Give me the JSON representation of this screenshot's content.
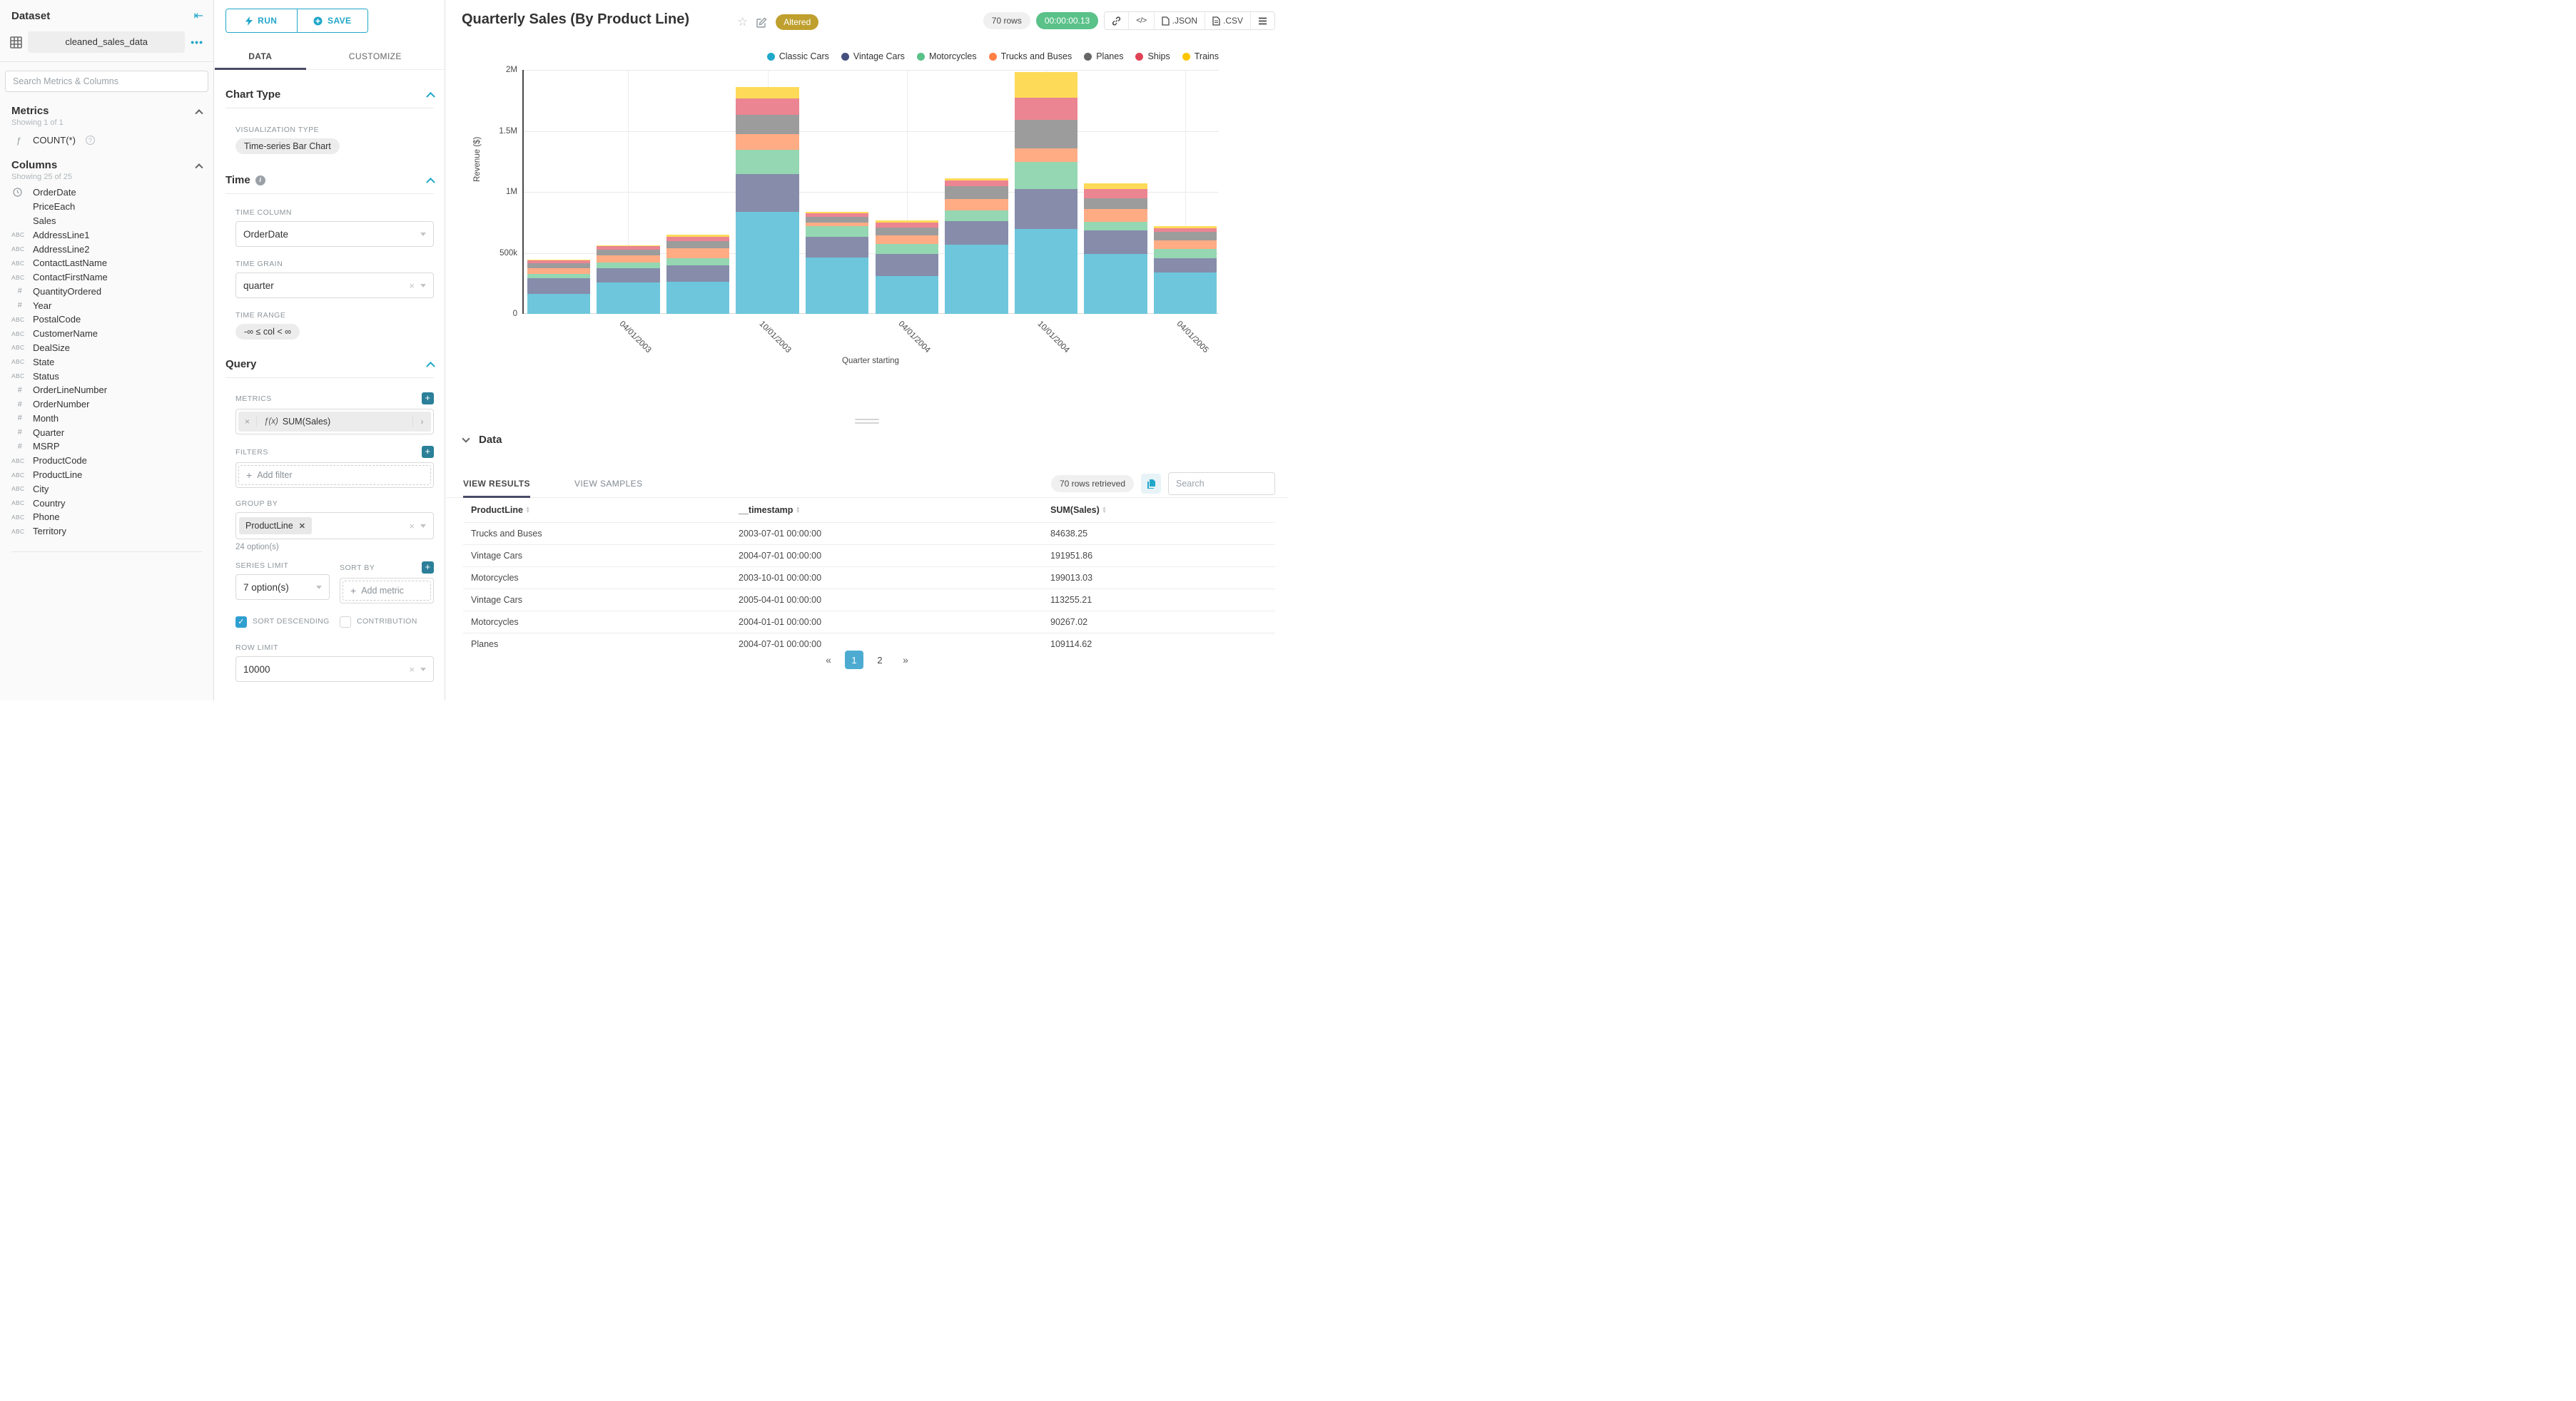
{
  "colors": {
    "accent": "#20a7c9",
    "tab_underline": "#484b66",
    "timer_green": "#5ac189",
    "badge_gold": "#bfa02f",
    "active_page_blue": "#4dabd1",
    "checkbox_blue": "#2f9fd0"
  },
  "sidebar": {
    "title": "Dataset",
    "dataset_name": "cleaned_sales_data",
    "search_placeholder": "Search Metrics & Columns",
    "metrics": {
      "title": "Metrics",
      "count_text": "Showing 1 of 1",
      "items": [
        {
          "type": "function",
          "label": "COUNT(*)"
        }
      ]
    },
    "columns": {
      "title": "Columns",
      "count_text": "Showing 25 of 25",
      "items": [
        {
          "type": "time",
          "label": "OrderDate"
        },
        {
          "type": "none",
          "label": "PriceEach"
        },
        {
          "type": "none",
          "label": "Sales"
        },
        {
          "type": "text",
          "label": "AddressLine1"
        },
        {
          "type": "text",
          "label": "AddressLine2"
        },
        {
          "type": "text",
          "label": "ContactLastName"
        },
        {
          "type": "text",
          "label": "ContactFirstName"
        },
        {
          "type": "num",
          "label": "QuantityOrdered"
        },
        {
          "type": "num",
          "label": "Year"
        },
        {
          "type": "text",
          "label": "PostalCode"
        },
        {
          "type": "text",
          "label": "CustomerName"
        },
        {
          "type": "text",
          "label": "DealSize"
        },
        {
          "type": "text",
          "label": "State"
        },
        {
          "type": "text",
          "label": "Status"
        },
        {
          "type": "num",
          "label": "OrderLineNumber"
        },
        {
          "type": "num",
          "label": "OrderNumber"
        },
        {
          "type": "num",
          "label": "Month"
        },
        {
          "type": "num",
          "label": "Quarter"
        },
        {
          "type": "num",
          "label": "MSRP"
        },
        {
          "type": "text",
          "label": "ProductCode"
        },
        {
          "type": "text",
          "label": "ProductLine"
        },
        {
          "type": "text",
          "label": "City"
        },
        {
          "type": "text",
          "label": "Country"
        },
        {
          "type": "text",
          "label": "Phone"
        },
        {
          "type": "text",
          "label": "Territory"
        }
      ]
    }
  },
  "panel": {
    "run_label": "RUN",
    "save_label": "SAVE",
    "tabs": {
      "data": "DATA",
      "customize": "CUSTOMIZE"
    },
    "chart_type": {
      "section": "Chart Type",
      "viz_label": "VISUALIZATION TYPE",
      "viz_value": "Time-series Bar Chart"
    },
    "time": {
      "section": "Time",
      "column_label": "TIME COLUMN",
      "column_value": "OrderDate",
      "grain_label": "TIME GRAIN",
      "grain_value": "quarter",
      "range_label": "TIME RANGE",
      "range_value": "-∞ ≤ col < ∞"
    },
    "query": {
      "section": "Query",
      "metrics_label": "METRICS",
      "metric_fx": "ƒ(x)",
      "metric_value": "SUM(Sales)",
      "filters_label": "FILTERS",
      "add_filter_label": "Add filter",
      "groupby_label": "GROUP BY",
      "groupby_value": "ProductLine",
      "groupby_note": "24 option(s)",
      "series_limit_label": "SERIES LIMIT",
      "series_limit_value": "7 option(s)",
      "sortby_label": "SORT BY",
      "add_metric_label": "Add metric",
      "sort_descending_label": "SORT DESCENDING",
      "contribution_label": "CONTRIBUTION",
      "row_limit_label": "ROW LIMIT",
      "row_limit_value": "10000"
    }
  },
  "header": {
    "title": "Quarterly Sales (By Product Line)",
    "badge": "Altered",
    "rows_pill": "70 rows",
    "timer_pill": "00:00:00.13",
    "export_json": ".JSON",
    "export_csv": ".CSV"
  },
  "chart_data": {
    "type": "bar",
    "stacked": true,
    "title": "Quarterly Sales (By Product Line)",
    "xlabel": "Quarter starting",
    "ylabel": "Revenue ($)",
    "grid": true,
    "legend_position": "top-right",
    "ylim": [
      0,
      2000000
    ],
    "yticks": [
      {
        "label": "0",
        "value": 0
      },
      {
        "label": "500k",
        "value": 500000
      },
      {
        "label": "1M",
        "value": 1000000
      },
      {
        "label": "1.5M",
        "value": 1500000
      },
      {
        "label": "2M",
        "value": 2000000
      }
    ],
    "x": [
      "2003-01-01",
      "2003-04-01",
      "2003-07-01",
      "2003-10-01",
      "2004-01-01",
      "2004-04-01",
      "2004-07-01",
      "2004-10-01",
      "2005-01-01",
      "2005-04-01"
    ],
    "x_tick_labels": [
      "",
      "04/01/2003",
      "",
      "10/01/2003",
      "",
      "04/01/2004",
      "",
      "10/01/2004",
      "",
      "04/01/2005"
    ],
    "series": [
      {
        "name": "Classic Cars",
        "color": "#1FA8C9",
        "values": [
          161000,
          256000,
          264000,
          836000,
          464000,
          309000,
          569000,
          698000,
          493000,
          341000
        ]
      },
      {
        "name": "Vintage Cars",
        "color": "#454E7C",
        "values": [
          131000,
          117000,
          134000,
          313000,
          165000,
          183000,
          191951.86,
          323000,
          189000,
          113255.21
        ]
      },
      {
        "name": "Motorcycles",
        "color": "#5AC189",
        "values": [
          36000,
          46000,
          56000,
          199013.03,
          90267.02,
          82000,
          85000,
          222000,
          71000,
          81000
        ]
      },
      {
        "name": "Trucks and Buses",
        "color": "#FF7F44",
        "values": [
          49000,
          59000,
          84638.25,
          124000,
          29000,
          72000,
          93000,
          115000,
          106000,
          69000
        ]
      },
      {
        "name": "Planes",
        "color": "#666666",
        "values": [
          40000,
          46000,
          60000,
          159000,
          48000,
          61000,
          109114.62,
          232000,
          91000,
          71000
        ]
      },
      {
        "name": "Ships",
        "color": "#E04355",
        "values": [
          24000,
          29000,
          36000,
          136000,
          26000,
          41000,
          48000,
          181000,
          75000,
          27000
        ]
      },
      {
        "name": "Trains",
        "color": "#FCC700",
        "values": [
          5000,
          10000,
          15000,
          94000,
          12000,
          18000,
          13000,
          214000,
          47000,
          17000
        ]
      }
    ]
  },
  "results": {
    "section_title": "Data",
    "tab_results": "VIEW RESULTS",
    "tab_samples": "VIEW SAMPLES",
    "rows_retrieved": "70 rows retrieved",
    "search_placeholder": "Search",
    "columns": [
      "ProductLine",
      "__timestamp",
      "SUM(Sales)"
    ],
    "rows": [
      [
        "Trucks and Buses",
        "2003-07-01 00:00:00",
        "84638.25"
      ],
      [
        "Vintage Cars",
        "2004-07-01 00:00:00",
        "191951.86"
      ],
      [
        "Motorcycles",
        "2003-10-01 00:00:00",
        "199013.03"
      ],
      [
        "Vintage Cars",
        "2005-04-01 00:00:00",
        "113255.21"
      ],
      [
        "Motorcycles",
        "2004-01-01 00:00:00",
        "90267.02"
      ],
      [
        "Planes",
        "2004-07-01 00:00:00",
        "109114.62"
      ]
    ],
    "pagination": {
      "items": [
        "«",
        "1",
        "2",
        "»"
      ],
      "active_index": 1
    }
  }
}
